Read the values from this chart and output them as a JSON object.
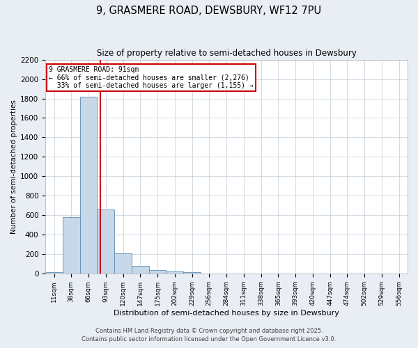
{
  "title_line1": "9, GRASMERE ROAD, DEWSBURY, WF12 7PU",
  "title_line2": "Size of property relative to semi-detached houses in Dewsbury",
  "xlabel": "Distribution of semi-detached houses by size in Dewsbury",
  "ylabel": "Number of semi-detached properties",
  "categories": [
    "11sqm",
    "38sqm",
    "66sqm",
    "93sqm",
    "120sqm",
    "147sqm",
    "175sqm",
    "202sqm",
    "229sqm",
    "256sqm",
    "284sqm",
    "311sqm",
    "338sqm",
    "365sqm",
    "393sqm",
    "420sqm",
    "447sqm",
    "474sqm",
    "502sqm",
    "529sqm",
    "556sqm"
  ],
  "values": [
    20,
    580,
    1820,
    660,
    210,
    80,
    35,
    25,
    20,
    5,
    0,
    0,
    0,
    0,
    0,
    0,
    0,
    0,
    0,
    0,
    0
  ],
  "bar_color": "#c8d8e8",
  "bar_edge_color": "#5b8db8",
  "vline_x_index": 2.67,
  "vline_color": "#cc0000",
  "annotation_text": "9 GRASMERE ROAD: 91sqm\n← 66% of semi-detached houses are smaller (2,276)\n  33% of semi-detached houses are larger (1,155) →",
  "annotation_box_color": "#cc0000",
  "ylim": [
    0,
    2200
  ],
  "yticks": [
    0,
    200,
    400,
    600,
    800,
    1000,
    1200,
    1400,
    1600,
    1800,
    2000,
    2200
  ],
  "footer_line1": "Contains HM Land Registry data © Crown copyright and database right 2025.",
  "footer_line2": "Contains public sector information licensed under the Open Government Licence v3.0.",
  "bg_color": "#e8eef4",
  "plot_bg_color": "#ffffff",
  "grid_color": "#c0ccd8"
}
